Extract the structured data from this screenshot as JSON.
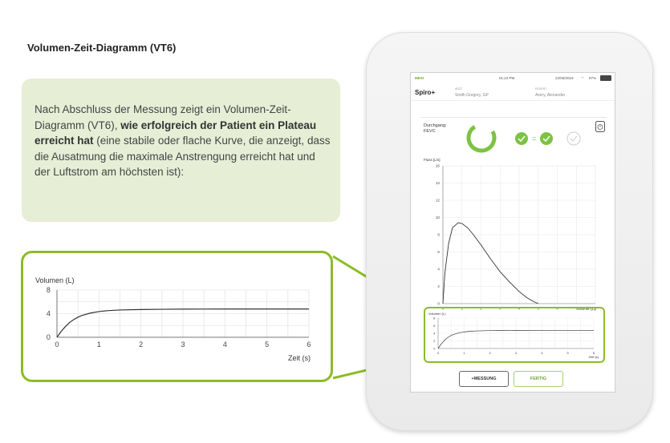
{
  "heading": "Volumen-Zeit-Diagramm (VT6)",
  "callout": {
    "text_before": "Nach Abschluss der Messung zeigt ein Volumen-Zeit-Diagramm (VT6), ",
    "text_bold": "wie erfolgreich der Patient ein Plateau erreicht hat",
    "text_after": " (eine stabile oder flache Kurve, die anzeigt, dass die Ausatmung die maximale Anstrengung erreicht hat und der Luftstrom am höchsten ist):"
  },
  "colors": {
    "accent": "#8cbb2a",
    "callout_bg": "#e6efd6",
    "ok_green": "#7cc243"
  },
  "device": {
    "status": {
      "carrier": "MESI",
      "time": "01:24 PM",
      "date": "22/05/2019",
      "battery": "97%"
    },
    "app_title": "Spiro+",
    "doctor_label": "ARZT",
    "doctor_name": "Smith Gregory, GP",
    "patient_label": "PATIENT",
    "patient_name": "Avery, Alexander",
    "trial_label": "Durchgang:",
    "trial_type": "FEVC",
    "buttons": {
      "measure": "+MESSUNG",
      "done": "FERTIG"
    }
  },
  "chart_data": [
    {
      "type": "line",
      "title": "",
      "xlabel": "Zeit (s)",
      "ylabel": "Volumen (L)",
      "xlim": [
        0,
        6
      ],
      "ylim": [
        0,
        8
      ],
      "x_ticks": [
        "0",
        "1",
        "2",
        "3",
        "4",
        "5",
        "6"
      ],
      "y_ticks": [
        "0",
        "4",
        "8"
      ],
      "x": [
        0,
        0.1,
        0.2,
        0.3,
        0.4,
        0.5,
        0.6,
        0.8,
        1.0,
        1.2,
        1.5,
        2.0,
        2.5,
        3.0,
        4.0,
        5.0,
        6.0
      ],
      "y": [
        0,
        1.0,
        1.8,
        2.5,
        3.0,
        3.4,
        3.7,
        4.1,
        4.35,
        4.5,
        4.62,
        4.7,
        4.74,
        4.76,
        4.78,
        4.78,
        4.78
      ],
      "grid": true
    },
    {
      "type": "line",
      "title": "",
      "xlabel": "Volumen [L]",
      "ylabel": "Fluss [L/s]",
      "xlim": [
        0,
        8
      ],
      "ylim": [
        0,
        16
      ],
      "x_ticks": [
        "0",
        "1",
        "2",
        "3",
        "4",
        "5",
        "6",
        "7",
        "8"
      ],
      "y_ticks": [
        "0",
        "2",
        "4",
        "6",
        "8",
        "10",
        "12",
        "14",
        "16"
      ],
      "x": [
        0,
        0.1,
        0.3,
        0.5,
        0.8,
        1.0,
        1.3,
        1.6,
        2.0,
        2.5,
        3.0,
        3.5,
        4.0,
        4.4,
        4.7,
        5.0
      ],
      "y": [
        0,
        3.5,
        7.0,
        8.8,
        9.4,
        9.3,
        8.8,
        8.0,
        6.8,
        5.2,
        3.7,
        2.5,
        1.4,
        0.7,
        0.3,
        0
      ],
      "grid": true
    },
    {
      "type": "line",
      "title": "",
      "xlabel": "Zeit (s)",
      "ylabel": "Volumen (L)",
      "xlim": [
        0,
        6
      ],
      "ylim": [
        0,
        8
      ],
      "x_ticks": [
        "0",
        "1",
        "2",
        "3",
        "4",
        "5",
        "6"
      ],
      "y_ticks": [
        "0",
        "2",
        "4",
        "6",
        "8"
      ],
      "x": [
        0,
        0.1,
        0.2,
        0.3,
        0.4,
        0.5,
        0.6,
        0.8,
        1.0,
        1.2,
        1.5,
        2.0,
        2.5,
        3.0,
        4.0,
        5.0,
        6.0
      ],
      "y": [
        0,
        1.0,
        1.8,
        2.5,
        3.0,
        3.4,
        3.7,
        4.1,
        4.35,
        4.5,
        4.62,
        4.7,
        4.74,
        4.76,
        4.78,
        4.78,
        4.78
      ],
      "grid": true
    }
  ]
}
